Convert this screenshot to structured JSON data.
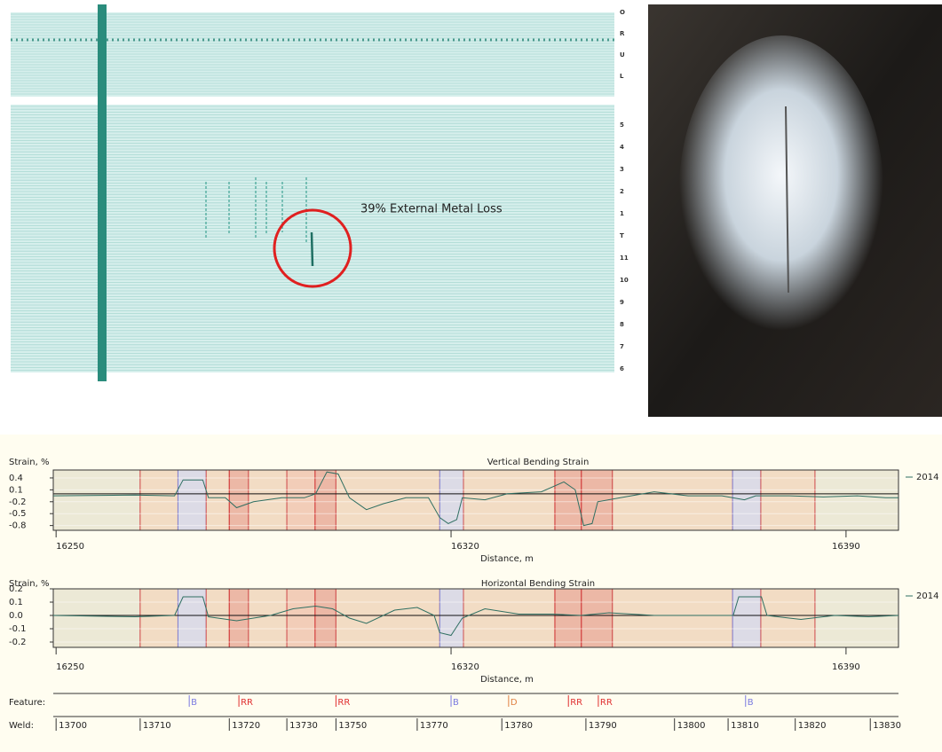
{
  "scan": {
    "annotation": "39% External Metal Loss",
    "channels_top": [
      "O",
      "R",
      "U",
      "L"
    ],
    "channels_bottom": [
      "5",
      "4",
      "3",
      "2",
      "1",
      "T",
      "11",
      "10",
      "9",
      "8",
      "7",
      "6"
    ]
  },
  "chart_data": [
    {
      "type": "line",
      "title": "Vertical Bending Strain",
      "y_label": "Strain, %",
      "x_label": "Distance, m",
      "xlim": [
        16249.5,
        16399.3
      ],
      "xticks": [
        16250,
        16320,
        16390
      ],
      "ylim": [
        -0.92,
        0.6
      ],
      "yticks": [
        0.4,
        0.1,
        -0.2,
        -0.5,
        -0.8
      ],
      "regions": [
        {
          "x": [
            16249.5,
            16264.9
          ],
          "color": "#ece9d6",
          "edge": "#d05050"
        },
        {
          "x": [
            16264.9,
            16271.6
          ],
          "color": "#f2dcc4",
          "edge": "#d05050"
        },
        {
          "x": [
            16271.6,
            16276.6
          ],
          "color": "#dcdbe6",
          "edge": "#8080d0"
        },
        {
          "x": [
            16276.6,
            16280.7
          ],
          "color": "#f2dcc4",
          "edge": "#d05050"
        },
        {
          "x": [
            16280.7,
            16284.1
          ],
          "color": "#ecb8a6",
          "edge": "#d03030"
        },
        {
          "x": [
            16284.1,
            16290.9
          ],
          "color": "#f2dcc4",
          "edge": "#d05050"
        },
        {
          "x": [
            16290.9,
            16295.9
          ],
          "color": "#f2cdb8",
          "edge": "#d05050"
        },
        {
          "x": [
            16295.9,
            16299.6
          ],
          "color": "#ecb8a6",
          "edge": "#d03030"
        },
        {
          "x": [
            16299.6,
            16318.0
          ],
          "color": "#f2dcc4",
          "edge": "#d05050"
        },
        {
          "x": [
            16318.0,
            16322.2
          ],
          "color": "#dcdbe6",
          "edge": "#8080d0"
        },
        {
          "x": [
            16322.2,
            16338.4
          ],
          "color": "#f2dcc4",
          "edge": "#d05050"
        },
        {
          "x": [
            16338.4,
            16343.1
          ],
          "color": "#ecb8a6",
          "edge": "#d03030"
        },
        {
          "x": [
            16343.1,
            16348.6
          ],
          "color": "#ecb8a6",
          "edge": "#d03030"
        },
        {
          "x": [
            16348.6,
            16369.9
          ],
          "color": "#f2dcc4",
          "edge": "#d05050"
        },
        {
          "x": [
            16369.9,
            16374.9
          ],
          "color": "#dcdbe6",
          "edge": "#8080d0"
        },
        {
          "x": [
            16374.9,
            16384.5
          ],
          "color": "#f2dcc4",
          "edge": "#d05050"
        },
        {
          "x": [
            16384.5,
            16399.3
          ],
          "color": "#ece9d6",
          "edge": "#d05050"
        }
      ],
      "series": [
        {
          "name": "2014",
          "color": "#2f6f62",
          "x": [
            16249.5,
            16258,
            16264,
            16271,
            16272.5,
            16276,
            16277,
            16280,
            16282,
            16285,
            16290,
            16294,
            16296,
            16298,
            16300,
            16302,
            16305,
            16308,
            16312,
            16316,
            16318,
            16319.5,
            16321,
            16322,
            16326,
            16330,
            16336,
            16340,
            16342,
            16343.5,
            16345,
            16346,
            16350,
            16356,
            16362,
            16368,
            16372,
            16374,
            16380,
            16386,
            16392,
            16397,
            16399.3
          ],
          "values": [
            -0.05,
            -0.04,
            -0.03,
            -0.05,
            0.35,
            0.35,
            -0.1,
            -0.1,
            -0.35,
            -0.2,
            -0.1,
            -0.1,
            0.0,
            0.55,
            0.5,
            -0.1,
            -0.4,
            -0.25,
            -0.1,
            -0.1,
            -0.6,
            -0.75,
            -0.65,
            -0.1,
            -0.15,
            0.0,
            0.05,
            0.3,
            0.1,
            -0.8,
            -0.75,
            -0.2,
            -0.1,
            0.05,
            -0.05,
            -0.05,
            -0.15,
            -0.05,
            -0.05,
            -0.08,
            -0.05,
            -0.1,
            -0.1
          ]
        }
      ]
    },
    {
      "type": "line",
      "title": "Horizontal Bending Strain",
      "y_label": "Strain, %",
      "x_label": "Distance, m",
      "xlim": [
        16249.5,
        16399.3
      ],
      "xticks": [
        16250,
        16320,
        16390
      ],
      "ylim": [
        -0.24,
        0.2
      ],
      "yticks": [
        0.2,
        0.1,
        {
          "value": 0,
          "label": "0.0"
        },
        -0.1,
        -0.2
      ],
      "regions": [
        {
          "x": [
            16249.5,
            16264.9
          ],
          "color": "#ece9d6",
          "edge": "#d05050"
        },
        {
          "x": [
            16264.9,
            16271.6
          ],
          "color": "#f2dcc4",
          "edge": "#d05050"
        },
        {
          "x": [
            16271.6,
            16276.6
          ],
          "color": "#dcdbe6",
          "edge": "#8080d0"
        },
        {
          "x": [
            16276.6,
            16280.7
          ],
          "color": "#f2dcc4",
          "edge": "#d05050"
        },
        {
          "x": [
            16280.7,
            16284.1
          ],
          "color": "#ecb8a6",
          "edge": "#d03030"
        },
        {
          "x": [
            16284.1,
            16290.9
          ],
          "color": "#f2dcc4",
          "edge": "#d05050"
        },
        {
          "x": [
            16290.9,
            16295.9
          ],
          "color": "#f2cdb8",
          "edge": "#d05050"
        },
        {
          "x": [
            16295.9,
            16299.6
          ],
          "color": "#ecb8a6",
          "edge": "#d03030"
        },
        {
          "x": [
            16299.6,
            16318.0
          ],
          "color": "#f2dcc4",
          "edge": "#d05050"
        },
        {
          "x": [
            16318.0,
            16322.2
          ],
          "color": "#dcdbe6",
          "edge": "#8080d0"
        },
        {
          "x": [
            16322.2,
            16338.4
          ],
          "color": "#f2dcc4",
          "edge": "#d05050"
        },
        {
          "x": [
            16338.4,
            16343.1
          ],
          "color": "#ecb8a6",
          "edge": "#d03030"
        },
        {
          "x": [
            16343.1,
            16348.6
          ],
          "color": "#ecb8a6",
          "edge": "#d03030"
        },
        {
          "x": [
            16348.6,
            16369.9
          ],
          "color": "#f2dcc4",
          "edge": "#d05050"
        },
        {
          "x": [
            16369.9,
            16374.9
          ],
          "color": "#dcdbe6",
          "edge": "#8080d0"
        },
        {
          "x": [
            16374.9,
            16384.5
          ],
          "color": "#f2dcc4",
          "edge": "#d05050"
        },
        {
          "x": [
            16384.5,
            16399.3
          ],
          "color": "#ece9d6",
          "edge": "#d05050"
        }
      ],
      "series": [
        {
          "name": "2014",
          "color": "#2f6f62",
          "x": [
            16249.5,
            16264,
            16271,
            16272.5,
            16276,
            16277,
            16282,
            16288,
            16292,
            16296,
            16299,
            16302,
            16305,
            16310,
            16314,
            16317,
            16318,
            16320,
            16322,
            16326,
            16332,
            16338,
            16343,
            16348,
            16356,
            16362,
            16370,
            16371,
            16375,
            16376,
            16382,
            16388,
            16394,
            16399.3
          ],
          "values": [
            0.0,
            -0.01,
            0.0,
            0.14,
            0.14,
            -0.01,
            -0.04,
            0.0,
            0.05,
            0.07,
            0.05,
            -0.02,
            -0.06,
            0.04,
            0.06,
            0.0,
            -0.13,
            -0.15,
            -0.02,
            0.05,
            0.01,
            0.01,
            0.0,
            0.02,
            0.0,
            0.0,
            0.0,
            0.14,
            0.14,
            0.0,
            -0.03,
            0.0,
            -0.01,
            0.0
          ]
        }
      ]
    }
  ],
  "feature_track": {
    "label": "Feature:",
    "items": [
      {
        "label": "B",
        "at": 16273.6,
        "color": "#7a7ae0"
      },
      {
        "label": "RR",
        "at": 16282.4,
        "color": "#e03030"
      },
      {
        "label": "RR",
        "at": 16299.6,
        "color": "#e03030"
      },
      {
        "label": "B",
        "at": 16320,
        "color": "#7a7ae0"
      },
      {
        "label": "D",
        "at": 16330.2,
        "color": "#e08040"
      },
      {
        "label": "RR",
        "at": 16340.8,
        "color": "#e03030"
      },
      {
        "label": "RR",
        "at": 16346.1,
        "color": "#e03030"
      },
      {
        "label": "B",
        "at": 16372.2,
        "color": "#7a7ae0"
      }
    ]
  },
  "weld_track": {
    "label": "Weld:",
    "labels": [
      13700,
      13710,
      13720,
      13730,
      13750,
      13770,
      13780,
      13790,
      13800,
      13810,
      13820,
      13830
    ],
    "at": [
      16250,
      16264.9,
      16280.7,
      16290.9,
      16299.6,
      16314.0,
      16329.0,
      16343.9,
      16359.6,
      16369.1,
      16381.0,
      16394.3
    ]
  }
}
